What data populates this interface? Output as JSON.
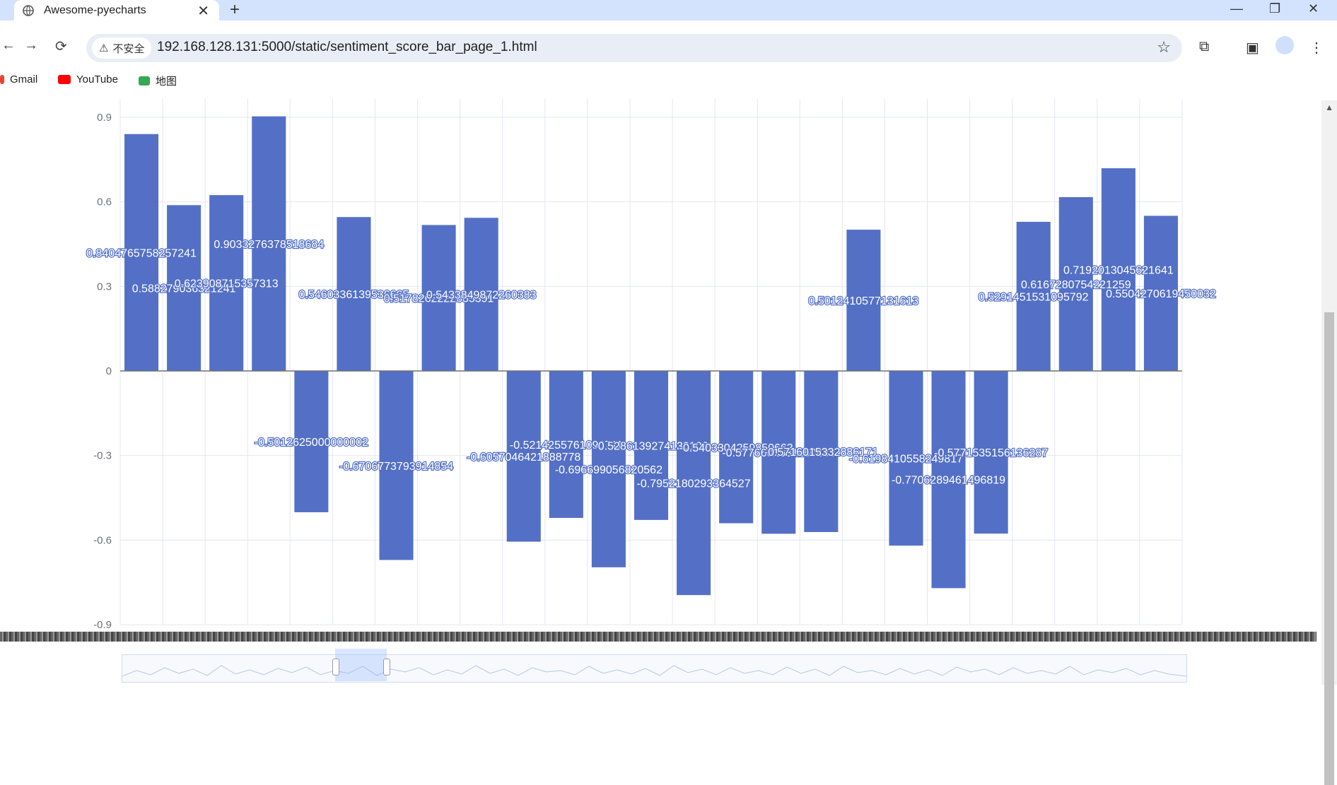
{
  "browser": {
    "tab_title": "Awesome-pyecharts",
    "tab_close": "✕",
    "new_tab": "+",
    "min": "—",
    "max": "❐",
    "close": "✕",
    "back": "←",
    "forward": "→",
    "reload": "⟳",
    "security_label": "不安全",
    "url": "192.168.128.131:5000/static/sentiment_score_bar_page_1.html",
    "star": "☆",
    "bookmarks": [
      {
        "label": "Gmail",
        "color": "#ea4335"
      },
      {
        "label": "YouTube",
        "color": "#ff0000"
      },
      {
        "label": "地图",
        "color": "#34a853"
      }
    ]
  },
  "chart_data": {
    "type": "bar",
    "ylim": [
      -0.9,
      0.9
    ],
    "yticks": [
      "0.9",
      "0.6",
      "0.3",
      "0",
      "-0.3",
      "-0.6",
      "-0.9"
    ],
    "grid": true,
    "bar_color": "#5470c6",
    "values": [
      0.8404765758257241,
      0.588279036321241,
      0.623908715357313,
      0.9033276378518684,
      -0.5012625000000002,
      0.5460336139536665,
      -0.6706773793914854,
      0.5178262222685391,
      0.5433849872260383,
      -0.6057046421888778,
      -0.5214255761090711,
      -0.696699056820562,
      -0.5286139274130106,
      -0.7952180293364527,
      -0.5403304259850663,
      -0.5776601531160483,
      -0.5716015332886171,
      0.5012410577131613,
      -0.6198410558249817,
      -0.7706289461496819,
      -0.5771535156136287,
      0.5291451531095792,
      0.6167280754221259,
      0.7192013045621641,
      0.5504270619450032
    ],
    "labels": [
      "0.8404765758257241",
      "0.588279036321241",
      "0.623908715357313",
      "0.9033276378518684",
      "-0.5012625000000002",
      "0.5460336139536665",
      "-0.6706773793914854",
      "0.5178262222685391",
      "0.5433849872260383",
      "-0.6057046421888778",
      "-0.5214255761090711",
      "-0.696699056820562",
      "-0.5286139274130106",
      "-0.7952180293364527",
      "-0.5403304259850663",
      "-0.5776601531160483",
      "-0.5716015332886171",
      "0.5012410577131613",
      "-0.6198410558249817",
      "-0.7706289461496819",
      "-0.5771535156136287",
      "0.5291451531095792",
      "0.6167280754221259",
      "0.7192013045621641",
      "0.5504270619450032"
    ]
  }
}
